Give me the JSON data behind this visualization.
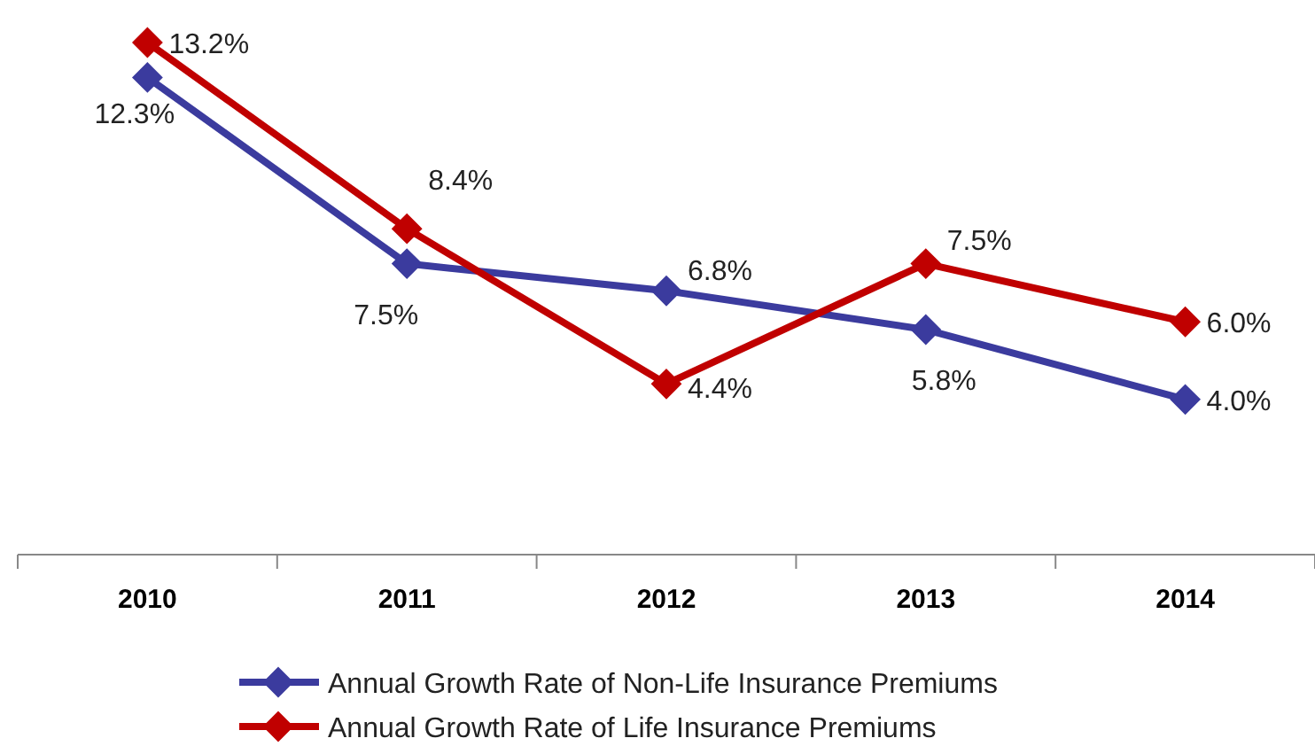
{
  "chart_data": {
    "type": "line",
    "categories": [
      "2010",
      "2011",
      "2012",
      "2013",
      "2014"
    ],
    "series": [
      {
        "name": "Annual Growth Rate of Non-Life Insurance Premiums",
        "color": "#3b3b9e",
        "values": [
          12.3,
          7.5,
          6.8,
          5.8,
          4.0
        ],
        "value_labels": [
          "12.3%",
          "7.5%",
          "6.8%",
          "5.8%",
          "4.0%"
        ]
      },
      {
        "name": "Annual Growth Rate of Life Insurance Premiums",
        "color": "#c00000",
        "values": [
          13.2,
          8.4,
          4.4,
          7.5,
          6.0
        ],
        "value_labels": [
          "13.2%",
          "8.4%",
          "4.4%",
          "7.5%",
          "6.0%"
        ]
      }
    ],
    "marker": "diamond",
    "line_style": "solid",
    "legend": "bottom",
    "grid": false
  }
}
